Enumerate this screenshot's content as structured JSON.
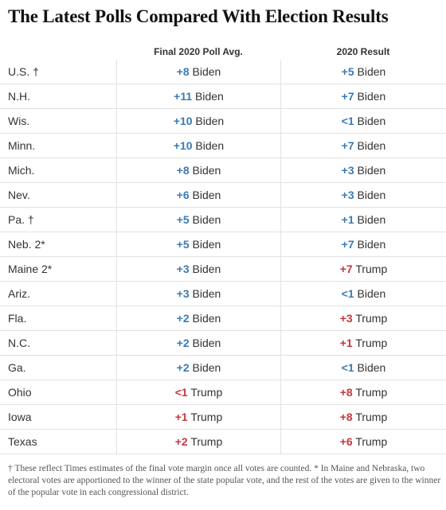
{
  "title": "The Latest Polls Compared With Election Results",
  "columns": {
    "poll": "Final 2020 Poll Avg.",
    "result": "2020 Result"
  },
  "colors": {
    "democrat": "#3a7bb5",
    "republican": "#c4383f"
  },
  "rows": [
    {
      "state": "U.S. †",
      "poll_margin": "+8",
      "poll_cand": "Biden",
      "poll_party": "dem",
      "result_margin": "+5",
      "result_cand": "Biden",
      "result_party": "dem"
    },
    {
      "state": "N.H.",
      "poll_margin": "+11",
      "poll_cand": "Biden",
      "poll_party": "dem",
      "result_margin": "+7",
      "result_cand": "Biden",
      "result_party": "dem"
    },
    {
      "state": "Wis.",
      "poll_margin": "+10",
      "poll_cand": "Biden",
      "poll_party": "dem",
      "result_margin": "<1",
      "result_cand": "Biden",
      "result_party": "dem"
    },
    {
      "state": "Minn.",
      "poll_margin": "+10",
      "poll_cand": "Biden",
      "poll_party": "dem",
      "result_margin": "+7",
      "result_cand": "Biden",
      "result_party": "dem"
    },
    {
      "state": "Mich.",
      "poll_margin": "+8",
      "poll_cand": "Biden",
      "poll_party": "dem",
      "result_margin": "+3",
      "result_cand": "Biden",
      "result_party": "dem"
    },
    {
      "state": "Nev.",
      "poll_margin": "+6",
      "poll_cand": "Biden",
      "poll_party": "dem",
      "result_margin": "+3",
      "result_cand": "Biden",
      "result_party": "dem"
    },
    {
      "state": "Pa. †",
      "poll_margin": "+5",
      "poll_cand": "Biden",
      "poll_party": "dem",
      "result_margin": "+1",
      "result_cand": "Biden",
      "result_party": "dem"
    },
    {
      "state": "Neb. 2*",
      "poll_margin": "+5",
      "poll_cand": "Biden",
      "poll_party": "dem",
      "result_margin": "+7",
      "result_cand": "Biden",
      "result_party": "dem"
    },
    {
      "state": "Maine 2*",
      "poll_margin": "+3",
      "poll_cand": "Biden",
      "poll_party": "dem",
      "result_margin": "+7",
      "result_cand": "Trump",
      "result_party": "rep"
    },
    {
      "state": "Ariz.",
      "poll_margin": "+3",
      "poll_cand": "Biden",
      "poll_party": "dem",
      "result_margin": "<1",
      "result_cand": "Biden",
      "result_party": "dem"
    },
    {
      "state": "Fla.",
      "poll_margin": "+2",
      "poll_cand": "Biden",
      "poll_party": "dem",
      "result_margin": "+3",
      "result_cand": "Trump",
      "result_party": "rep"
    },
    {
      "state": "N.C.",
      "poll_margin": "+2",
      "poll_cand": "Biden",
      "poll_party": "dem",
      "result_margin": "+1",
      "result_cand": "Trump",
      "result_party": "rep"
    },
    {
      "state": "Ga.",
      "poll_margin": "+2",
      "poll_cand": "Biden",
      "poll_party": "dem",
      "result_margin": "<1",
      "result_cand": "Biden",
      "result_party": "dem"
    },
    {
      "state": "Ohio",
      "poll_margin": "<1",
      "poll_cand": "Trump",
      "poll_party": "rep",
      "result_margin": "+8",
      "result_cand": "Trump",
      "result_party": "rep"
    },
    {
      "state": "Iowa",
      "poll_margin": "+1",
      "poll_cand": "Trump",
      "poll_party": "rep",
      "result_margin": "+8",
      "result_cand": "Trump",
      "result_party": "rep"
    },
    {
      "state": "Texas",
      "poll_margin": "+2",
      "poll_cand": "Trump",
      "poll_party": "rep",
      "result_margin": "+6",
      "result_cand": "Trump",
      "result_party": "rep"
    }
  ],
  "footnote": "† These reflect Times estimates of the final vote margin once all votes are counted. * In Maine and Nebraska, two electoral votes are apportioned to the winner of the state popular vote, and the rest of the votes are given to the winner of the popular vote in each congressional district."
}
